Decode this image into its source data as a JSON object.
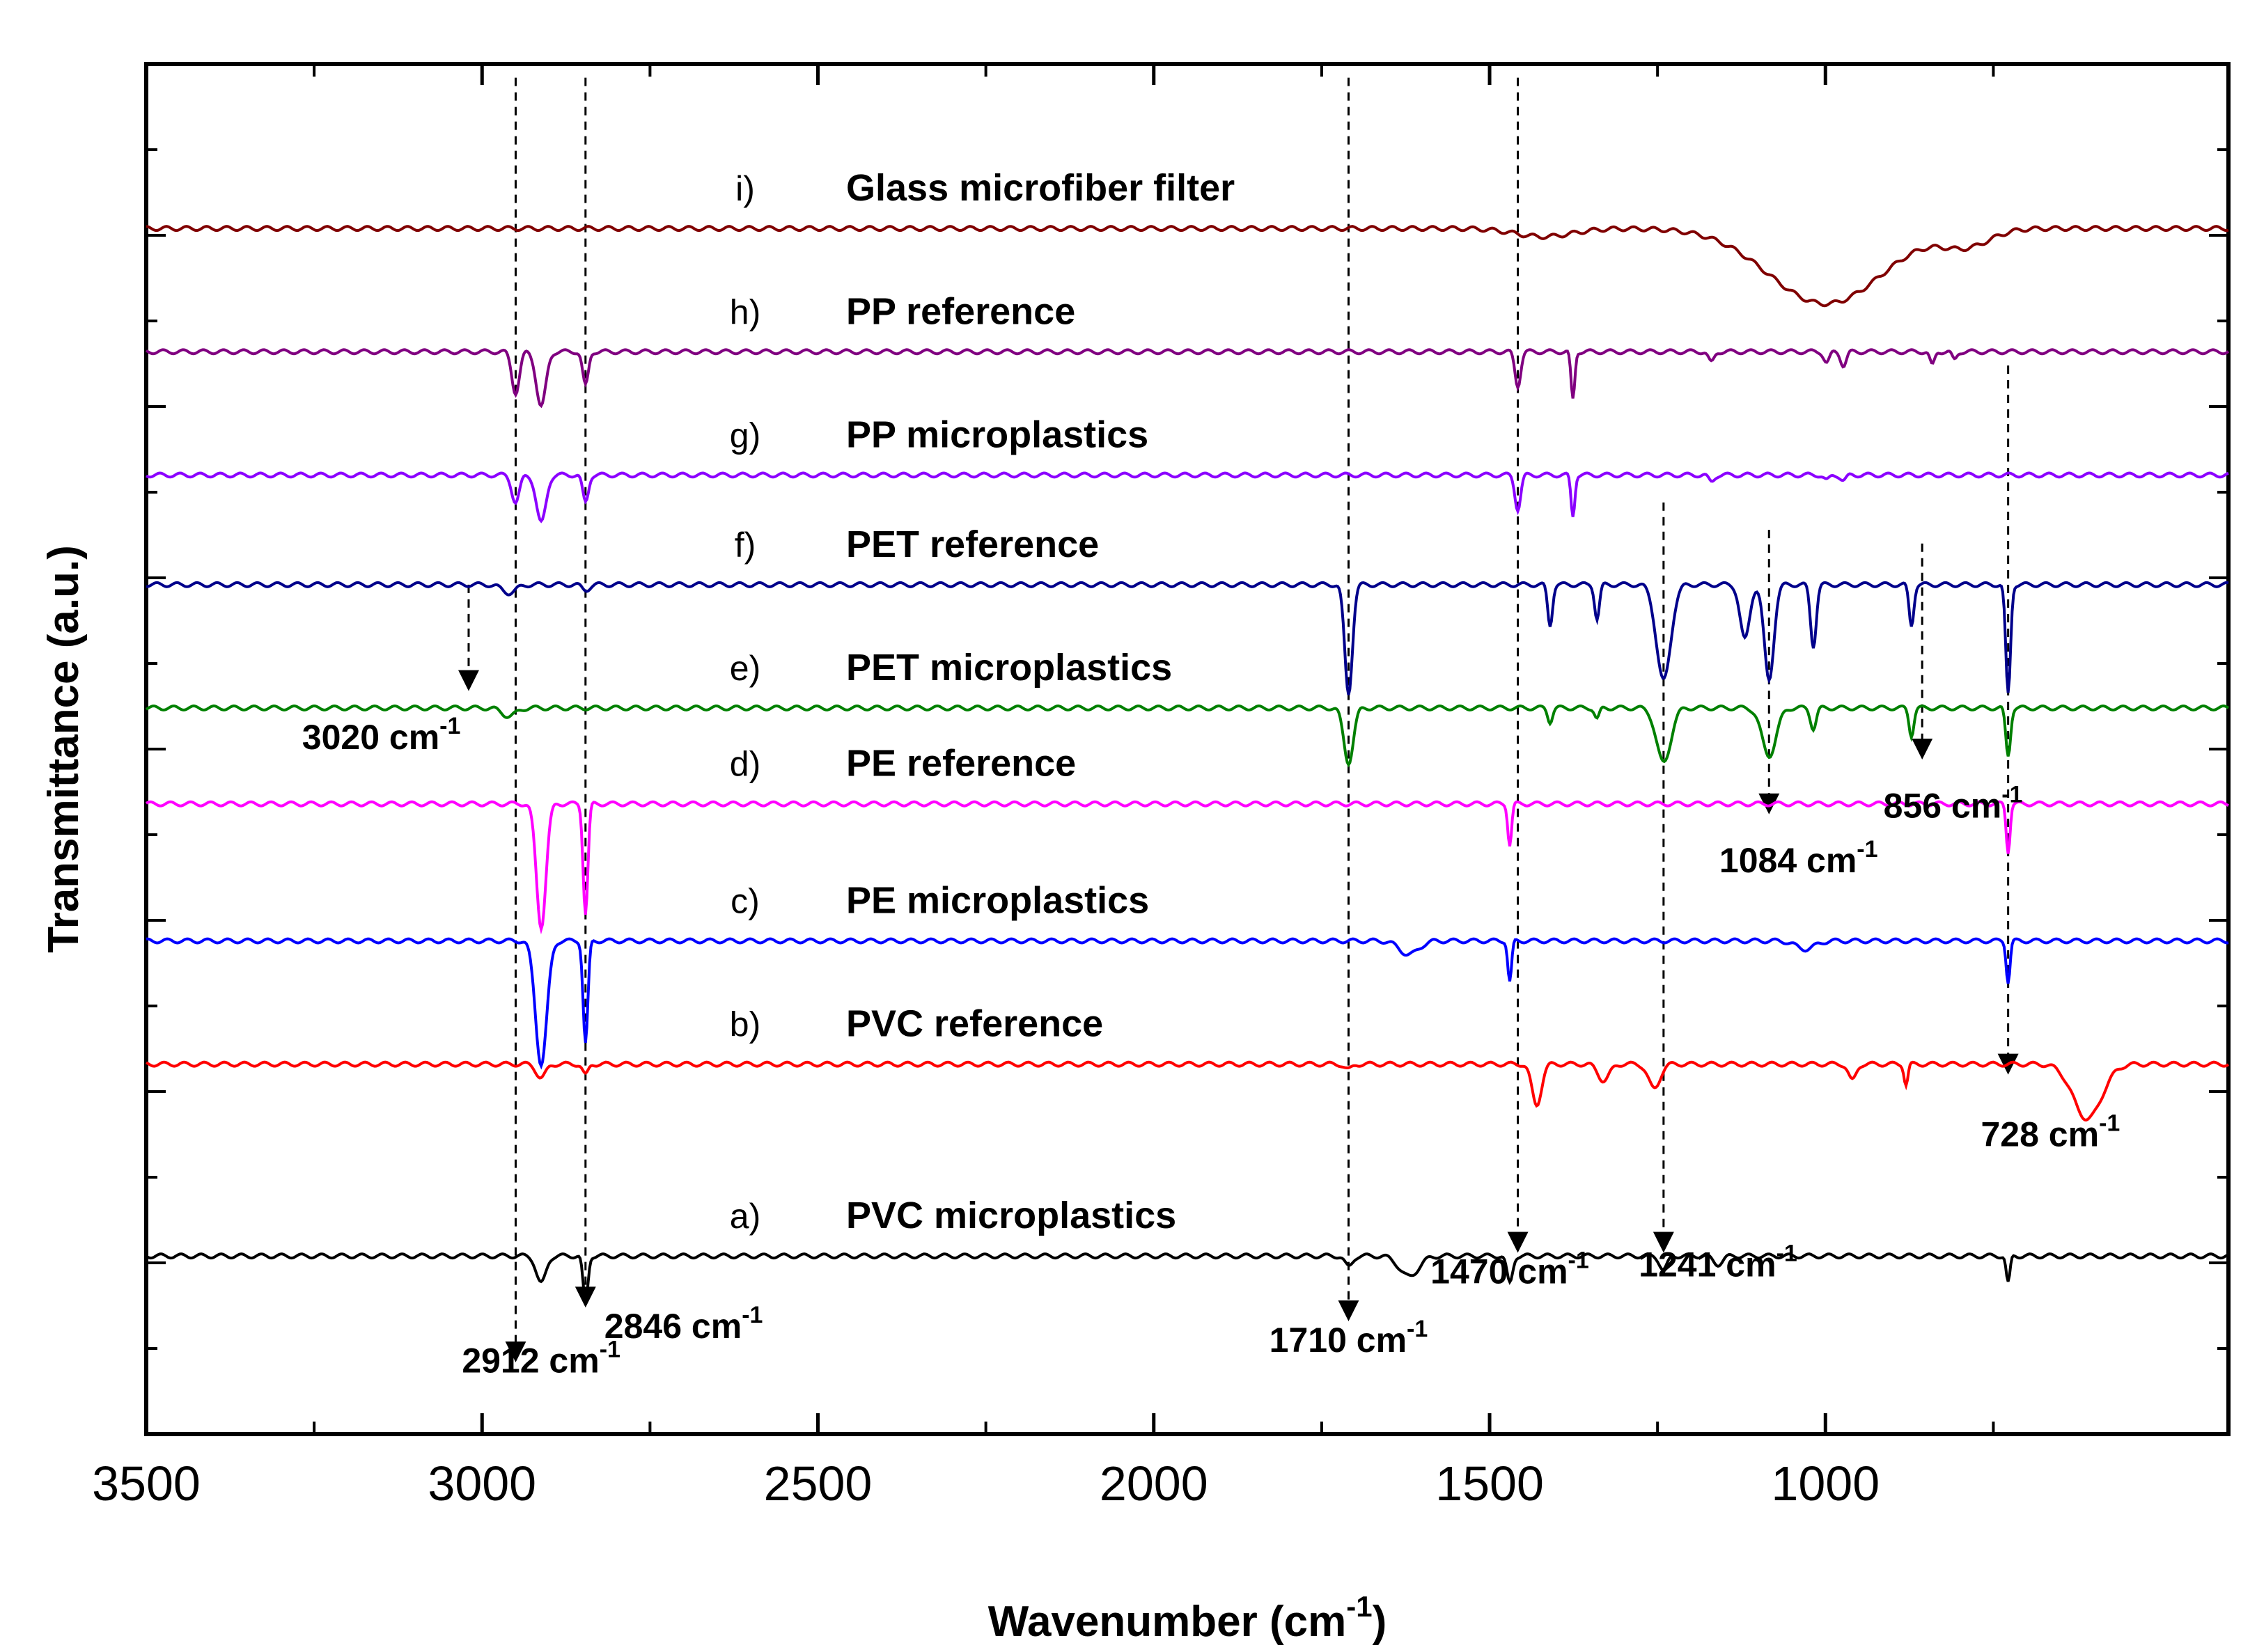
{
  "chart_data": {
    "type": "line",
    "title": "",
    "xlabel": "Wavenumber (cm",
    "xlabel_sup": "-1",
    "xlabel_close": ")",
    "ylabel": "Transmittance (a.u.)",
    "xlim": [
      3500,
      400
    ],
    "x_ticks": [
      3500,
      3000,
      2500,
      2000,
      1500,
      1000
    ],
    "x_tick_labels": [
      "3500",
      "3000",
      "2500",
      "2000",
      "1500",
      "1000"
    ],
    "grid": false,
    "series": [
      {
        "letter": "a)",
        "name": "PVC microplastics",
        "color": "#000000",
        "baseline": 0.13,
        "bands": [
          [
            2912,
            0.02,
            10
          ],
          [
            2846,
            0.035,
            5
          ],
          [
            1710,
            0.008,
            8
          ],
          [
            1620,
            0.015,
            20
          ],
          [
            1470,
            0.02,
            6
          ],
          [
            1241,
            0.01,
            8
          ],
          [
            1160,
            0.006,
            10
          ],
          [
            728,
            0.02,
            4
          ]
        ]
      },
      {
        "letter": "b)",
        "name": "PVC reference",
        "color": "#ff0000",
        "baseline": 0.27,
        "bands": [
          [
            2912,
            0.01,
            10
          ],
          [
            2846,
            0.008,
            6
          ],
          [
            1710,
            0.004,
            8
          ],
          [
            1430,
            0.03,
            10
          ],
          [
            1330,
            0.012,
            12
          ],
          [
            1255,
            0.018,
            12
          ],
          [
            960,
            0.012,
            8
          ],
          [
            880,
            0.015,
            4
          ],
          [
            610,
            0.04,
            30
          ]
        ]
      },
      {
        "letter": "c)",
        "name": "PE microplastics",
        "color": "#0000ff",
        "baseline": 0.36,
        "bands": [
          [
            2912,
            0.09,
            12
          ],
          [
            2846,
            0.075,
            5
          ],
          [
            1620,
            0.01,
            20
          ],
          [
            1470,
            0.03,
            4
          ],
          [
            1030,
            0.006,
            20
          ],
          [
            728,
            0.03,
            4
          ]
        ]
      },
      {
        "letter": "d)",
        "name": "PE reference",
        "color": "#ff00ff",
        "baseline": 0.46,
        "bands": [
          [
            2912,
            0.09,
            10
          ],
          [
            2846,
            0.08,
            5
          ],
          [
            1470,
            0.03,
            4
          ],
          [
            728,
            0.035,
            4
          ]
        ]
      },
      {
        "letter": "e)",
        "name": "PET microplastics",
        "color": "#008000",
        "baseline": 0.53,
        "bands": [
          [
            2960,
            0.006,
            15
          ],
          [
            1710,
            0.04,
            10
          ],
          [
            1410,
            0.01,
            5
          ],
          [
            1340,
            0.008,
            5
          ],
          [
            1241,
            0.04,
            15
          ],
          [
            1084,
            0.035,
            15
          ],
          [
            1018,
            0.015,
            6
          ],
          [
            872,
            0.02,
            5
          ],
          [
            728,
            0.035,
            5
          ]
        ]
      },
      {
        "letter": "f)",
        "name": "PET reference",
        "color": "#00008b",
        "baseline": 0.62,
        "bands": [
          [
            2960,
            0.006,
            15
          ],
          [
            2846,
            0.004,
            8
          ],
          [
            1710,
            0.08,
            8
          ],
          [
            1410,
            0.03,
            5
          ],
          [
            1340,
            0.025,
            5
          ],
          [
            1241,
            0.07,
            15
          ],
          [
            1120,
            0.04,
            10
          ],
          [
            1084,
            0.07,
            10
          ],
          [
            1018,
            0.045,
            6
          ],
          [
            872,
            0.03,
            5
          ],
          [
            728,
            0.08,
            5
          ]
        ]
      },
      {
        "letter": "g)",
        "name": "PP microplastics",
        "color": "#8b00ff",
        "baseline": 0.7,
        "bands": [
          [
            2950,
            0.02,
            8
          ],
          [
            2912,
            0.035,
            10
          ],
          [
            2846,
            0.02,
            6
          ],
          [
            1458,
            0.025,
            6
          ],
          [
            1376,
            0.03,
            4
          ],
          [
            1170,
            0.005,
            6
          ],
          [
            998,
            0.004,
            6
          ],
          [
            973,
            0.004,
            6
          ]
        ]
      },
      {
        "letter": "h)",
        "name": "PP reference",
        "color": "#800080",
        "baseline": 0.79,
        "bands": [
          [
            2950,
            0.03,
            8
          ],
          [
            2912,
            0.04,
            10
          ],
          [
            2846,
            0.025,
            6
          ],
          [
            1458,
            0.025,
            6
          ],
          [
            1376,
            0.035,
            4
          ],
          [
            1170,
            0.008,
            6
          ],
          [
            998,
            0.008,
            6
          ],
          [
            973,
            0.01,
            6
          ],
          [
            841,
            0.01,
            5
          ],
          [
            808,
            0.006,
            5
          ]
        ]
      },
      {
        "letter": "i)",
        "name": "Glass microfiber filter",
        "color": "#800000",
        "baseline": 0.88,
        "bands": [
          [
            1000,
            0.055,
            120
          ],
          [
            790,
            0.012,
            50
          ],
          [
            1420,
            0.006,
            60
          ]
        ]
      }
    ],
    "reference_lines": [
      {
        "x": 2950,
        "top": 0.99,
        "bottom": 0.06
      },
      {
        "x": 2846,
        "top": 0.99,
        "bottom": 0.1
      },
      {
        "x": 1710,
        "top": 0.99,
        "bottom": 0.09
      },
      {
        "x": 1458,
        "top": 0.99,
        "bottom": 0.14
      },
      {
        "x": 1241,
        "top": 0.68,
        "bottom": 0.14
      },
      {
        "x": 1084,
        "top": 0.66,
        "bottom": 0.46
      },
      {
        "x": 856,
        "top": 0.65,
        "bottom": 0.5
      },
      {
        "x": 728,
        "top": 0.78,
        "bottom": 0.27
      },
      {
        "x": 3020,
        "top": 0.62,
        "bottom": 0.55
      }
    ],
    "annotations": [
      {
        "text": "2912 cm",
        "sup": "-1",
        "x": 2912,
        "y": 0.045
      },
      {
        "text": "2846 cm",
        "sup": "-1",
        "x": 2700,
        "y": 0.07
      },
      {
        "text": "1710 cm",
        "sup": "-1",
        "x": 1710,
        "y": 0.06
      },
      {
        "text": "1470 cm",
        "sup": "-1",
        "x": 1470,
        "y": 0.11
      },
      {
        "text": "1241 cm",
        "sup": "-1",
        "x": 1160,
        "y": 0.115
      },
      {
        "text": "1084 cm",
        "sup": "-1",
        "x": 1040,
        "y": 0.41
      },
      {
        "text": "856 cm",
        "sup": "-1",
        "x": 810,
        "y": 0.45
      },
      {
        "text": "728 cm",
        "sup": "-1",
        "x": 665,
        "y": 0.21
      },
      {
        "text": "3020 cm",
        "sup": "-1",
        "x": 3150,
        "y": 0.5
      }
    ]
  }
}
